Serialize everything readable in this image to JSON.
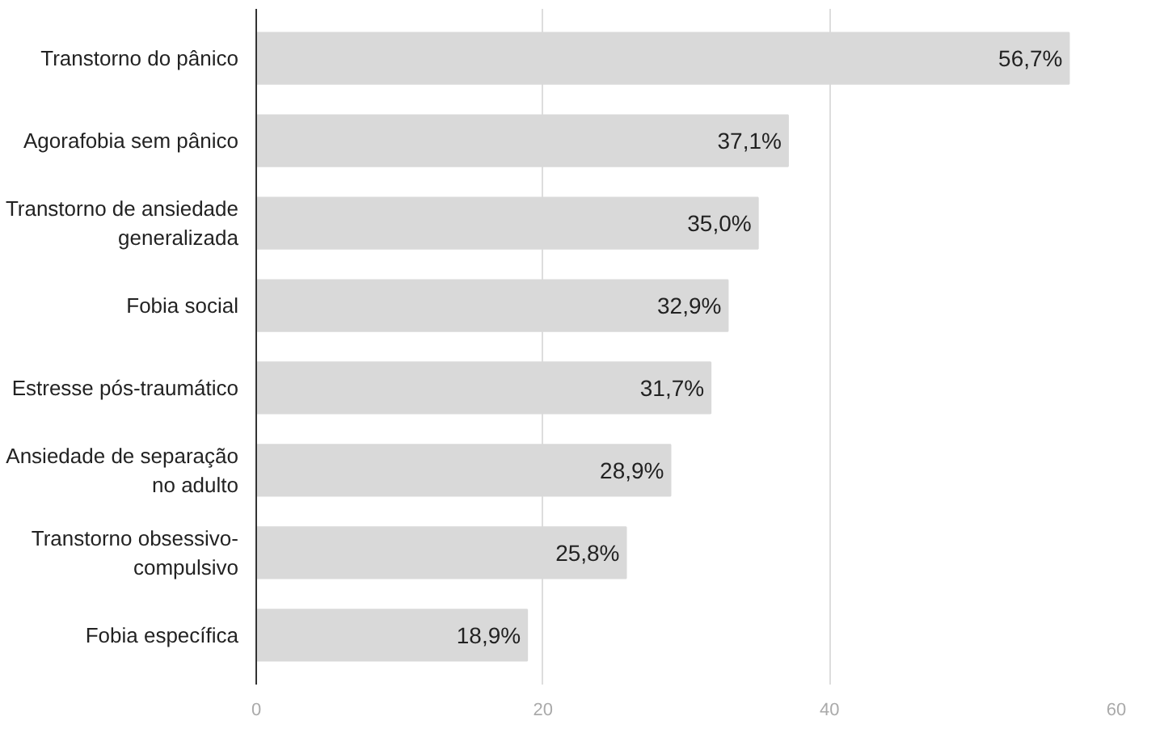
{
  "chart_data": {
    "type": "bar",
    "orientation": "horizontal",
    "categories": [
      "Transtorno do pânico",
      "Agorafobia sem pânico",
      "Transtorno de ansiedade\ngeneralizada",
      "Fobia social",
      "Estresse pós-traumático",
      "Ansiedade de separação\nno adulto",
      "Transtorno obsessivo-\ncompulsivo",
      "Fobia específica"
    ],
    "values": [
      56.7,
      37.1,
      35.0,
      32.9,
      31.7,
      28.9,
      25.8,
      18.9
    ],
    "value_labels": [
      "56,7%",
      "37,1%",
      "35,0%",
      "32,9%",
      "31,7%",
      "28,9%",
      "25,8%",
      "18,9%"
    ],
    "color": "#d9d9d9",
    "xlim": [
      0,
      60
    ],
    "xticks": [
      0,
      20,
      40,
      60
    ],
    "grid": "x"
  }
}
